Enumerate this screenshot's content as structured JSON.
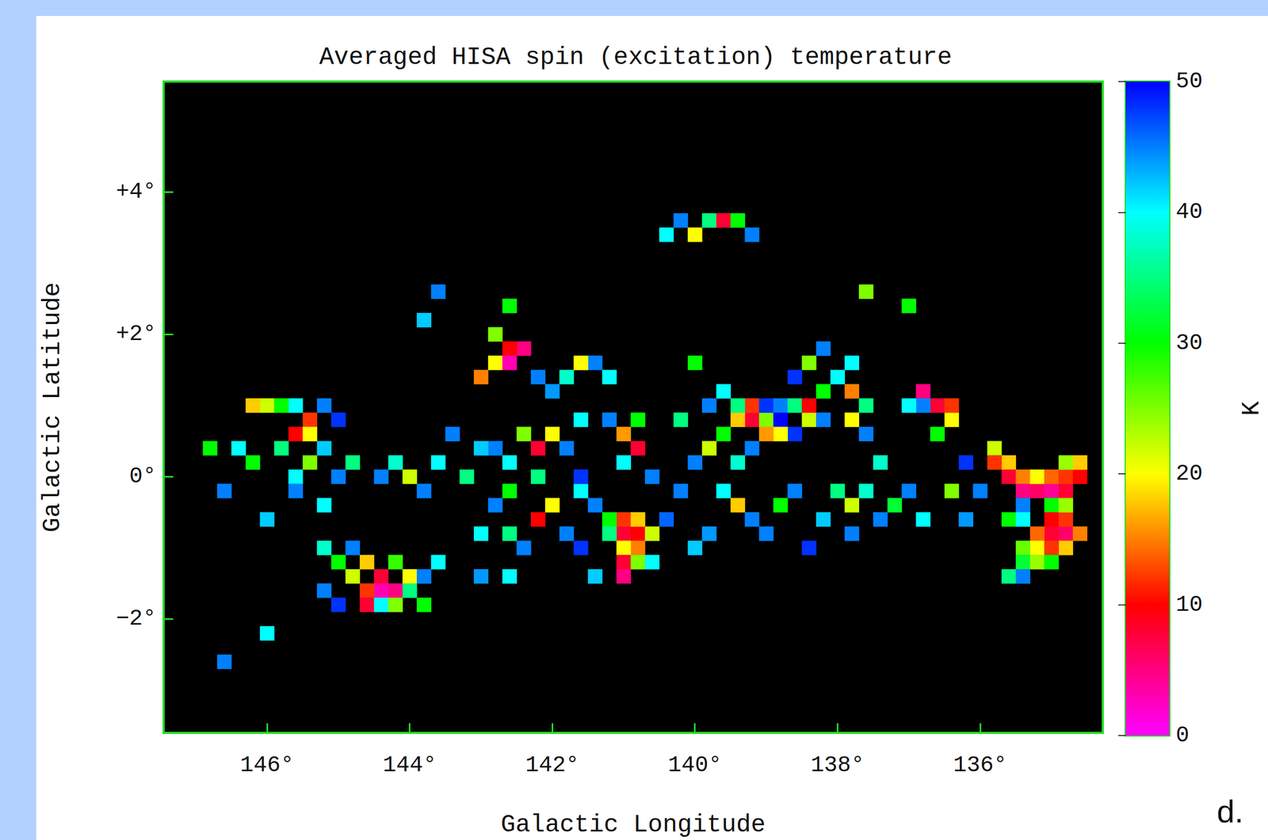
{
  "chart_data": {
    "type": "heatmap",
    "title": "Averaged HISA spin (excitation) temperature",
    "x_label": "Galactic Longitude",
    "y_label": "Galactic Latitude",
    "xlim": [
      147.45,
      134.28
    ],
    "ylim": [
      -3.6,
      5.55
    ],
    "xticks": [
      {
        "value": 146,
        "label": "146°"
      },
      {
        "value": 144,
        "label": "144°"
      },
      {
        "value": 142,
        "label": "142°"
      },
      {
        "value": 140,
        "label": "140°"
      },
      {
        "value": 138,
        "label": "138°"
      },
      {
        "value": 136,
        "label": "136°"
      }
    ],
    "yticks": [
      {
        "value": -2,
        "label": "−2°"
      },
      {
        "value": 0,
        "label": "0°"
      },
      {
        "value": 2,
        "label": "+2°"
      },
      {
        "value": 4,
        "label": "+4°"
      }
    ],
    "grid": false,
    "panel_label": "d.",
    "cell_size": 0.2,
    "cells": [
      [
        135.8,
        0.4,
        22
      ],
      [
        135.6,
        0.2,
        18
      ],
      [
        135.6,
        0.0,
        8
      ],
      [
        135.4,
        0.0,
        15
      ],
      [
        135.4,
        -0.2,
        5
      ],
      [
        135.2,
        -0.2,
        6
      ],
      [
        135.2,
        0.0,
        20
      ],
      [
        135.0,
        -0.2,
        4
      ],
      [
        135.0,
        0.0,
        14
      ],
      [
        134.8,
        -0.2,
        8
      ],
      [
        134.8,
        0.0,
        12
      ],
      [
        134.6,
        0.0,
        10
      ],
      [
        134.6,
        0.2,
        18
      ],
      [
        134.8,
        0.2,
        24
      ],
      [
        135.8,
        0.2,
        12
      ],
      [
        135.0,
        -0.4,
        30
      ],
      [
        135.4,
        -0.4,
        45
      ],
      [
        135.0,
        -0.8,
        8
      ],
      [
        135.0,
        -0.6,
        10
      ],
      [
        134.8,
        -0.8,
        6
      ],
      [
        134.8,
        -0.6,
        12
      ],
      [
        135.2,
        -0.8,
        14
      ],
      [
        135.2,
        -1.0,
        20
      ],
      [
        134.8,
        -1.0,
        18
      ],
      [
        134.6,
        -0.8,
        15
      ],
      [
        135.0,
        -1.0,
        12
      ],
      [
        135.4,
        -1.0,
        26
      ],
      [
        135.4,
        -1.2,
        32
      ],
      [
        135.2,
        -1.2,
        24
      ],
      [
        135.0,
        -1.2,
        30
      ],
      [
        135.6,
        -1.4,
        35
      ],
      [
        135.4,
        -1.4,
        45
      ],
      [
        134.8,
        -0.4,
        24
      ],
      [
        135.6,
        -0.6,
        30
      ],
      [
        135.4,
        -0.6,
        40
      ],
      [
        136.8,
        1.2,
        5
      ],
      [
        136.6,
        1.0,
        8
      ],
      [
        136.4,
        0.8,
        20
      ],
      [
        136.6,
        0.6,
        30
      ],
      [
        136.8,
        1.0,
        45
      ],
      [
        137.0,
        1.0,
        40
      ],
      [
        136.4,
        1.0,
        12
      ],
      [
        139.2,
        0.8,
        8
      ],
      [
        139.2,
        1.0,
        12
      ],
      [
        139.4,
        0.8,
        18
      ],
      [
        139.0,
        0.8,
        25
      ],
      [
        139.4,
        1.0,
        35
      ],
      [
        139.6,
        0.6,
        30
      ],
      [
        139.8,
        0.4,
        22
      ],
      [
        140.0,
        0.2,
        45
      ],
      [
        139.0,
        1.0,
        48
      ],
      [
        138.8,
        1.0,
        45
      ],
      [
        138.8,
        0.8,
        50
      ],
      [
        138.6,
        1.0,
        35
      ],
      [
        138.4,
        0.8,
        22
      ],
      [
        138.4,
        1.0,
        10
      ],
      [
        138.2,
        1.2,
        30
      ],
      [
        138.0,
        1.4,
        40
      ],
      [
        138.2,
        0.8,
        45
      ],
      [
        138.6,
        0.6,
        48
      ],
      [
        138.8,
        0.6,
        20
      ],
      [
        139.0,
        0.6,
        16
      ],
      [
        139.2,
        0.4,
        45
      ],
      [
        139.4,
        0.2,
        38
      ],
      [
        138.4,
        1.6,
        25
      ],
      [
        138.2,
        1.8,
        45
      ],
      [
        137.8,
        1.6,
        40
      ],
      [
        137.8,
        1.2,
        15
      ],
      [
        137.6,
        1.0,
        35
      ],
      [
        137.6,
        0.6,
        45
      ],
      [
        137.8,
        0.8,
        20
      ],
      [
        139.8,
        1.0,
        45
      ],
      [
        139.6,
        1.2,
        40
      ],
      [
        138.6,
        1.4,
        48
      ],
      [
        140.2,
        -0.2,
        45
      ],
      [
        139.6,
        -0.2,
        40
      ],
      [
        139.4,
        -0.4,
        18
      ],
      [
        139.2,
        -0.6,
        45
      ],
      [
        138.8,
        -0.4,
        30
      ],
      [
        138.6,
        -0.2,
        45
      ],
      [
        138.2,
        -0.6,
        42
      ],
      [
        138.0,
        -0.2,
        35
      ],
      [
        137.8,
        -0.4,
        22
      ],
      [
        137.6,
        -0.2,
        38
      ],
      [
        137.4,
        -0.6,
        45
      ],
      [
        137.2,
        -0.4,
        32
      ],
      [
        137.0,
        -0.2,
        45
      ],
      [
        136.8,
        -0.6,
        40
      ],
      [
        136.4,
        -0.2,
        25
      ],
      [
        139.0,
        -0.8,
        45
      ],
      [
        138.4,
        -1.0,
        48
      ],
      [
        139.8,
        -0.8,
        44
      ],
      [
        140.4,
        -0.6,
        46
      ],
      [
        137.8,
        -0.8,
        45
      ],
      [
        136.2,
        -0.6,
        44
      ],
      [
        141.0,
        -0.8,
        8
      ],
      [
        140.8,
        -0.8,
        10
      ],
      [
        141.0,
        -0.6,
        12
      ],
      [
        140.8,
        -1.0,
        15
      ],
      [
        141.0,
        -1.0,
        20
      ],
      [
        141.2,
        -0.6,
        30
      ],
      [
        141.2,
        -0.8,
        35
      ],
      [
        140.6,
        -0.8,
        22
      ],
      [
        140.8,
        -0.6,
        18
      ],
      [
        141.0,
        -1.2,
        8
      ],
      [
        140.8,
        -1.2,
        25
      ],
      [
        141.0,
        -1.4,
        5
      ],
      [
        141.4,
        -0.4,
        45
      ],
      [
        141.6,
        -0.2,
        40
      ],
      [
        141.4,
        -1.4,
        42
      ],
      [
        141.6,
        -1.0,
        48
      ],
      [
        140.6,
        -1.2,
        40
      ],
      [
        141.0,
        0.6,
        16
      ],
      [
        140.8,
        0.4,
        8
      ],
      [
        141.0,
        0.2,
        40
      ],
      [
        141.2,
        0.8,
        45
      ],
      [
        140.8,
        0.8,
        30
      ],
      [
        140.6,
        0.0,
        45
      ],
      [
        141.8,
        0.4,
        45
      ],
      [
        142.0,
        0.6,
        20
      ],
      [
        142.2,
        0.4,
        8
      ],
      [
        142.4,
        0.6,
        25
      ],
      [
        142.6,
        0.2,
        40
      ],
      [
        142.2,
        0.0,
        35
      ],
      [
        141.6,
        0.0,
        48
      ],
      [
        141.6,
        0.8,
        40
      ],
      [
        142.8,
        0.4,
        45
      ],
      [
        142.0,
        1.2,
        44
      ],
      [
        142.4,
        1.8,
        5
      ],
      [
        142.6,
        1.8,
        10
      ],
      [
        142.8,
        1.6,
        20
      ],
      [
        142.6,
        1.6,
        3
      ],
      [
        142.2,
        1.4,
        45
      ],
      [
        141.8,
        1.4,
        38
      ],
      [
        141.4,
        1.6,
        45
      ],
      [
        141.6,
        1.6,
        20
      ],
      [
        141.2,
        1.4,
        40
      ],
      [
        142.8,
        2.0,
        25
      ],
      [
        143.0,
        1.4,
        15
      ],
      [
        142.8,
        -0.4,
        45
      ],
      [
        142.6,
        -0.8,
        35
      ],
      [
        142.4,
        -1.0,
        45
      ],
      [
        142.2,
        -0.6,
        10
      ],
      [
        142.0,
        -0.4,
        20
      ],
      [
        141.8,
        -0.8,
        45
      ],
      [
        143.0,
        -0.8,
        40
      ],
      [
        142.6,
        -0.2,
        30
      ],
      [
        143.4,
        0.6,
        45
      ],
      [
        143.6,
        0.2,
        40
      ],
      [
        144.0,
        0.0,
        22
      ],
      [
        143.8,
        -0.2,
        45
      ],
      [
        144.2,
        0.2,
        38
      ],
      [
        144.4,
        0.0,
        45
      ],
      [
        143.2,
        0.0,
        35
      ],
      [
        143.0,
        0.4,
        42
      ],
      [
        144.6,
        -1.2,
        18
      ],
      [
        144.4,
        -1.4,
        8
      ],
      [
        144.2,
        -1.6,
        5
      ],
      [
        144.4,
        -1.6,
        3
      ],
      [
        144.6,
        -1.6,
        12
      ],
      [
        144.0,
        -1.4,
        20
      ],
      [
        144.2,
        -1.2,
        28
      ],
      [
        144.8,
        -1.4,
        22
      ],
      [
        145.0,
        -1.2,
        30
      ],
      [
        144.8,
        -1.0,
        45
      ],
      [
        144.6,
        -1.8,
        8
      ],
      [
        144.4,
        -1.8,
        40
      ],
      [
        144.0,
        -1.6,
        35
      ],
      [
        143.8,
        -1.4,
        45
      ],
      [
        143.6,
        -1.2,
        40
      ],
      [
        145.2,
        -1.6,
        45
      ],
      [
        145.0,
        -1.8,
        48
      ],
      [
        144.2,
        -1.8,
        25
      ],
      [
        143.8,
        -1.8,
        30
      ],
      [
        145.4,
        0.8,
        12
      ],
      [
        145.6,
        0.6,
        10
      ],
      [
        145.4,
        0.6,
        20
      ],
      [
        145.2,
        1.0,
        45
      ],
      [
        145.6,
        1.0,
        40
      ],
      [
        145.8,
        0.4,
        35
      ],
      [
        145.2,
        0.4,
        42
      ],
      [
        145.0,
        0.0,
        45
      ],
      [
        145.4,
        0.2,
        25
      ],
      [
        145.6,
        0.0,
        40
      ],
      [
        146.0,
        1.0,
        22
      ],
      [
        146.2,
        1.0,
        18
      ],
      [
        145.8,
        1.0,
        30
      ],
      [
        145.0,
        0.8,
        48
      ],
      [
        146.2,
        0.2,
        30
      ],
      [
        146.4,
        0.4,
        40
      ],
      [
        144.8,
        0.2,
        35
      ],
      [
        145.2,
        -0.4,
        40
      ],
      [
        145.6,
        -0.2,
        45
      ],
      [
        146.0,
        -0.6,
        42
      ],
      [
        146.6,
        -0.2,
        45
      ],
      [
        146.8,
        0.4,
        30
      ],
      [
        140.2,
        3.6,
        45
      ],
      [
        140.0,
        3.4,
        20
      ],
      [
        139.8,
        3.6,
        35
      ],
      [
        139.6,
        3.6,
        8
      ],
      [
        139.4,
        3.6,
        30
      ],
      [
        139.2,
        3.4,
        45
      ],
      [
        140.4,
        3.4,
        40
      ],
      [
        142.6,
        2.4,
        30
      ],
      [
        143.8,
        2.2,
        42
      ],
      [
        137.0,
        2.4,
        30
      ],
      [
        137.6,
        2.6,
        25
      ],
      [
        146.6,
        -2.6,
        45
      ],
      [
        146.0,
        -2.2,
        40
      ],
      [
        143.6,
        2.6,
        45
      ],
      [
        145.2,
        -1.0,
        38
      ],
      [
        140.0,
        -1.0,
        42
      ],
      [
        143.0,
        -1.4,
        44
      ],
      [
        142.6,
        -1.4,
        40
      ],
      [
        136.0,
        -0.2,
        45
      ],
      [
        136.2,
        0.2,
        48
      ],
      [
        137.4,
        0.2,
        38
      ],
      [
        140.2,
        0.8,
        35
      ],
      [
        140.0,
        1.6,
        30
      ]
    ],
    "colorbar": {
      "label": "K",
      "range": [
        0,
        50
      ],
      "ticks": [
        0,
        10,
        20,
        30,
        40,
        50
      ]
    }
  }
}
